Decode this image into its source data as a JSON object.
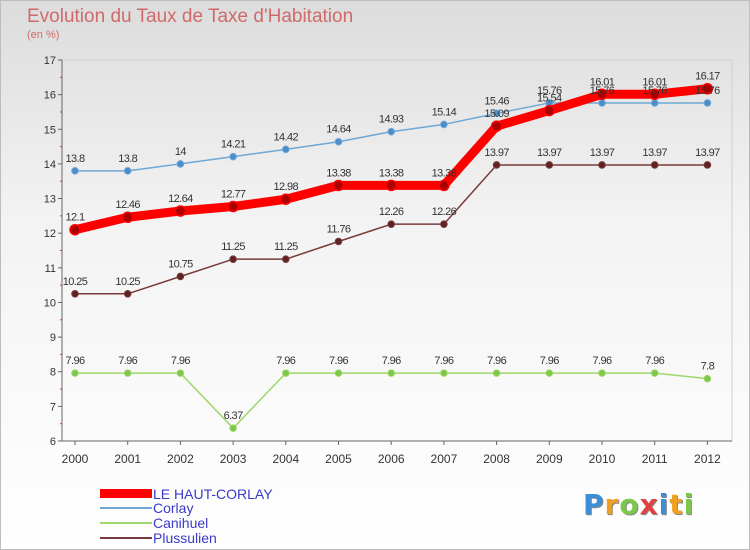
{
  "header": {
    "title": "Evolution du Taux de Taxe d'Habitation",
    "subtitle": "(en %)"
  },
  "chart_data": {
    "type": "line",
    "title": "Evolution du Taux de Taxe d'Habitation",
    "ylabel": "(en %)",
    "xlabel": "",
    "x": [
      "2000",
      "2001",
      "2002",
      "2003",
      "2004",
      "2005",
      "2006",
      "2007",
      "2008",
      "2009",
      "2010",
      "2011",
      "2012"
    ],
    "ylim": [
      6,
      17
    ],
    "yticks": [
      6,
      7,
      8,
      9,
      10,
      11,
      12,
      13,
      14,
      15,
      16,
      17
    ],
    "grid": false,
    "legend_position": "bottom-left",
    "series": [
      {
        "name": "LE HAUT-CORLAY",
        "color": "#ff0000",
        "marker_color": "#aa0000",
        "values": [
          12.1,
          12.46,
          12.64,
          12.77,
          12.98,
          13.38,
          13.38,
          13.38,
          15.09,
          15.54,
          16.01,
          16.01,
          16.17
        ],
        "labels": [
          "12.1",
          "12.46",
          "12.64",
          "12.77",
          "12.98",
          "13.38",
          "13.38",
          "13.38",
          "15.09",
          "15.54",
          "16.01",
          "16.01",
          "16.17"
        ]
      },
      {
        "name": "Corlay",
        "color": "#6fa8d6",
        "marker_color": "#4a8ec9",
        "values": [
          13.8,
          13.8,
          14,
          14.21,
          14.42,
          14.64,
          14.93,
          15.14,
          15.46,
          15.76,
          15.76,
          15.76,
          15.76
        ],
        "labels": [
          "13.8",
          "13.8",
          "14",
          "14.21",
          "14.42",
          "14.64",
          "14.93",
          "15.14",
          "15.46",
          "15.76",
          "15.76",
          "15.76",
          "15.76"
        ]
      },
      {
        "name": "Canihuel",
        "color": "#9ed86a",
        "marker_color": "#7cc84a",
        "values": [
          7.96,
          7.96,
          7.96,
          6.37,
          7.96,
          7.96,
          7.96,
          7.96,
          7.96,
          7.96,
          7.96,
          7.96,
          7.8
        ],
        "labels": [
          "7.96",
          "7.96",
          "7.96",
          "6.37",
          "7.96",
          "7.96",
          "7.96",
          "7.96",
          "7.96",
          "7.96",
          "7.96",
          "7.96",
          "7.8"
        ]
      },
      {
        "name": "Plussulien",
        "color": "#7a3a3a",
        "marker_color": "#5e2222",
        "values": [
          10.25,
          10.25,
          10.75,
          11.25,
          11.25,
          11.76,
          12.26,
          12.26,
          13.97,
          13.97,
          13.97,
          13.97,
          13.97
        ],
        "labels": [
          "10.25",
          "10.25",
          "10.75",
          "11.25",
          "11.25",
          "11.76",
          "12.26",
          "12.26",
          "13.97",
          "13.97",
          "13.97",
          "13.97",
          "13.97"
        ]
      }
    ]
  },
  "legend": {
    "items": [
      "LE HAUT-CORLAY",
      "Corlay",
      "Canihuel",
      "Plussulien"
    ]
  },
  "logo": {
    "letters": [
      "P",
      "r",
      "o",
      "x",
      "i",
      "t",
      "i"
    ],
    "colors": [
      "#3a8fd6",
      "#f0a020",
      "#7cc84a",
      "#e04040",
      "#3a8fd6",
      "#f0a020",
      "#7cc84a"
    ]
  }
}
